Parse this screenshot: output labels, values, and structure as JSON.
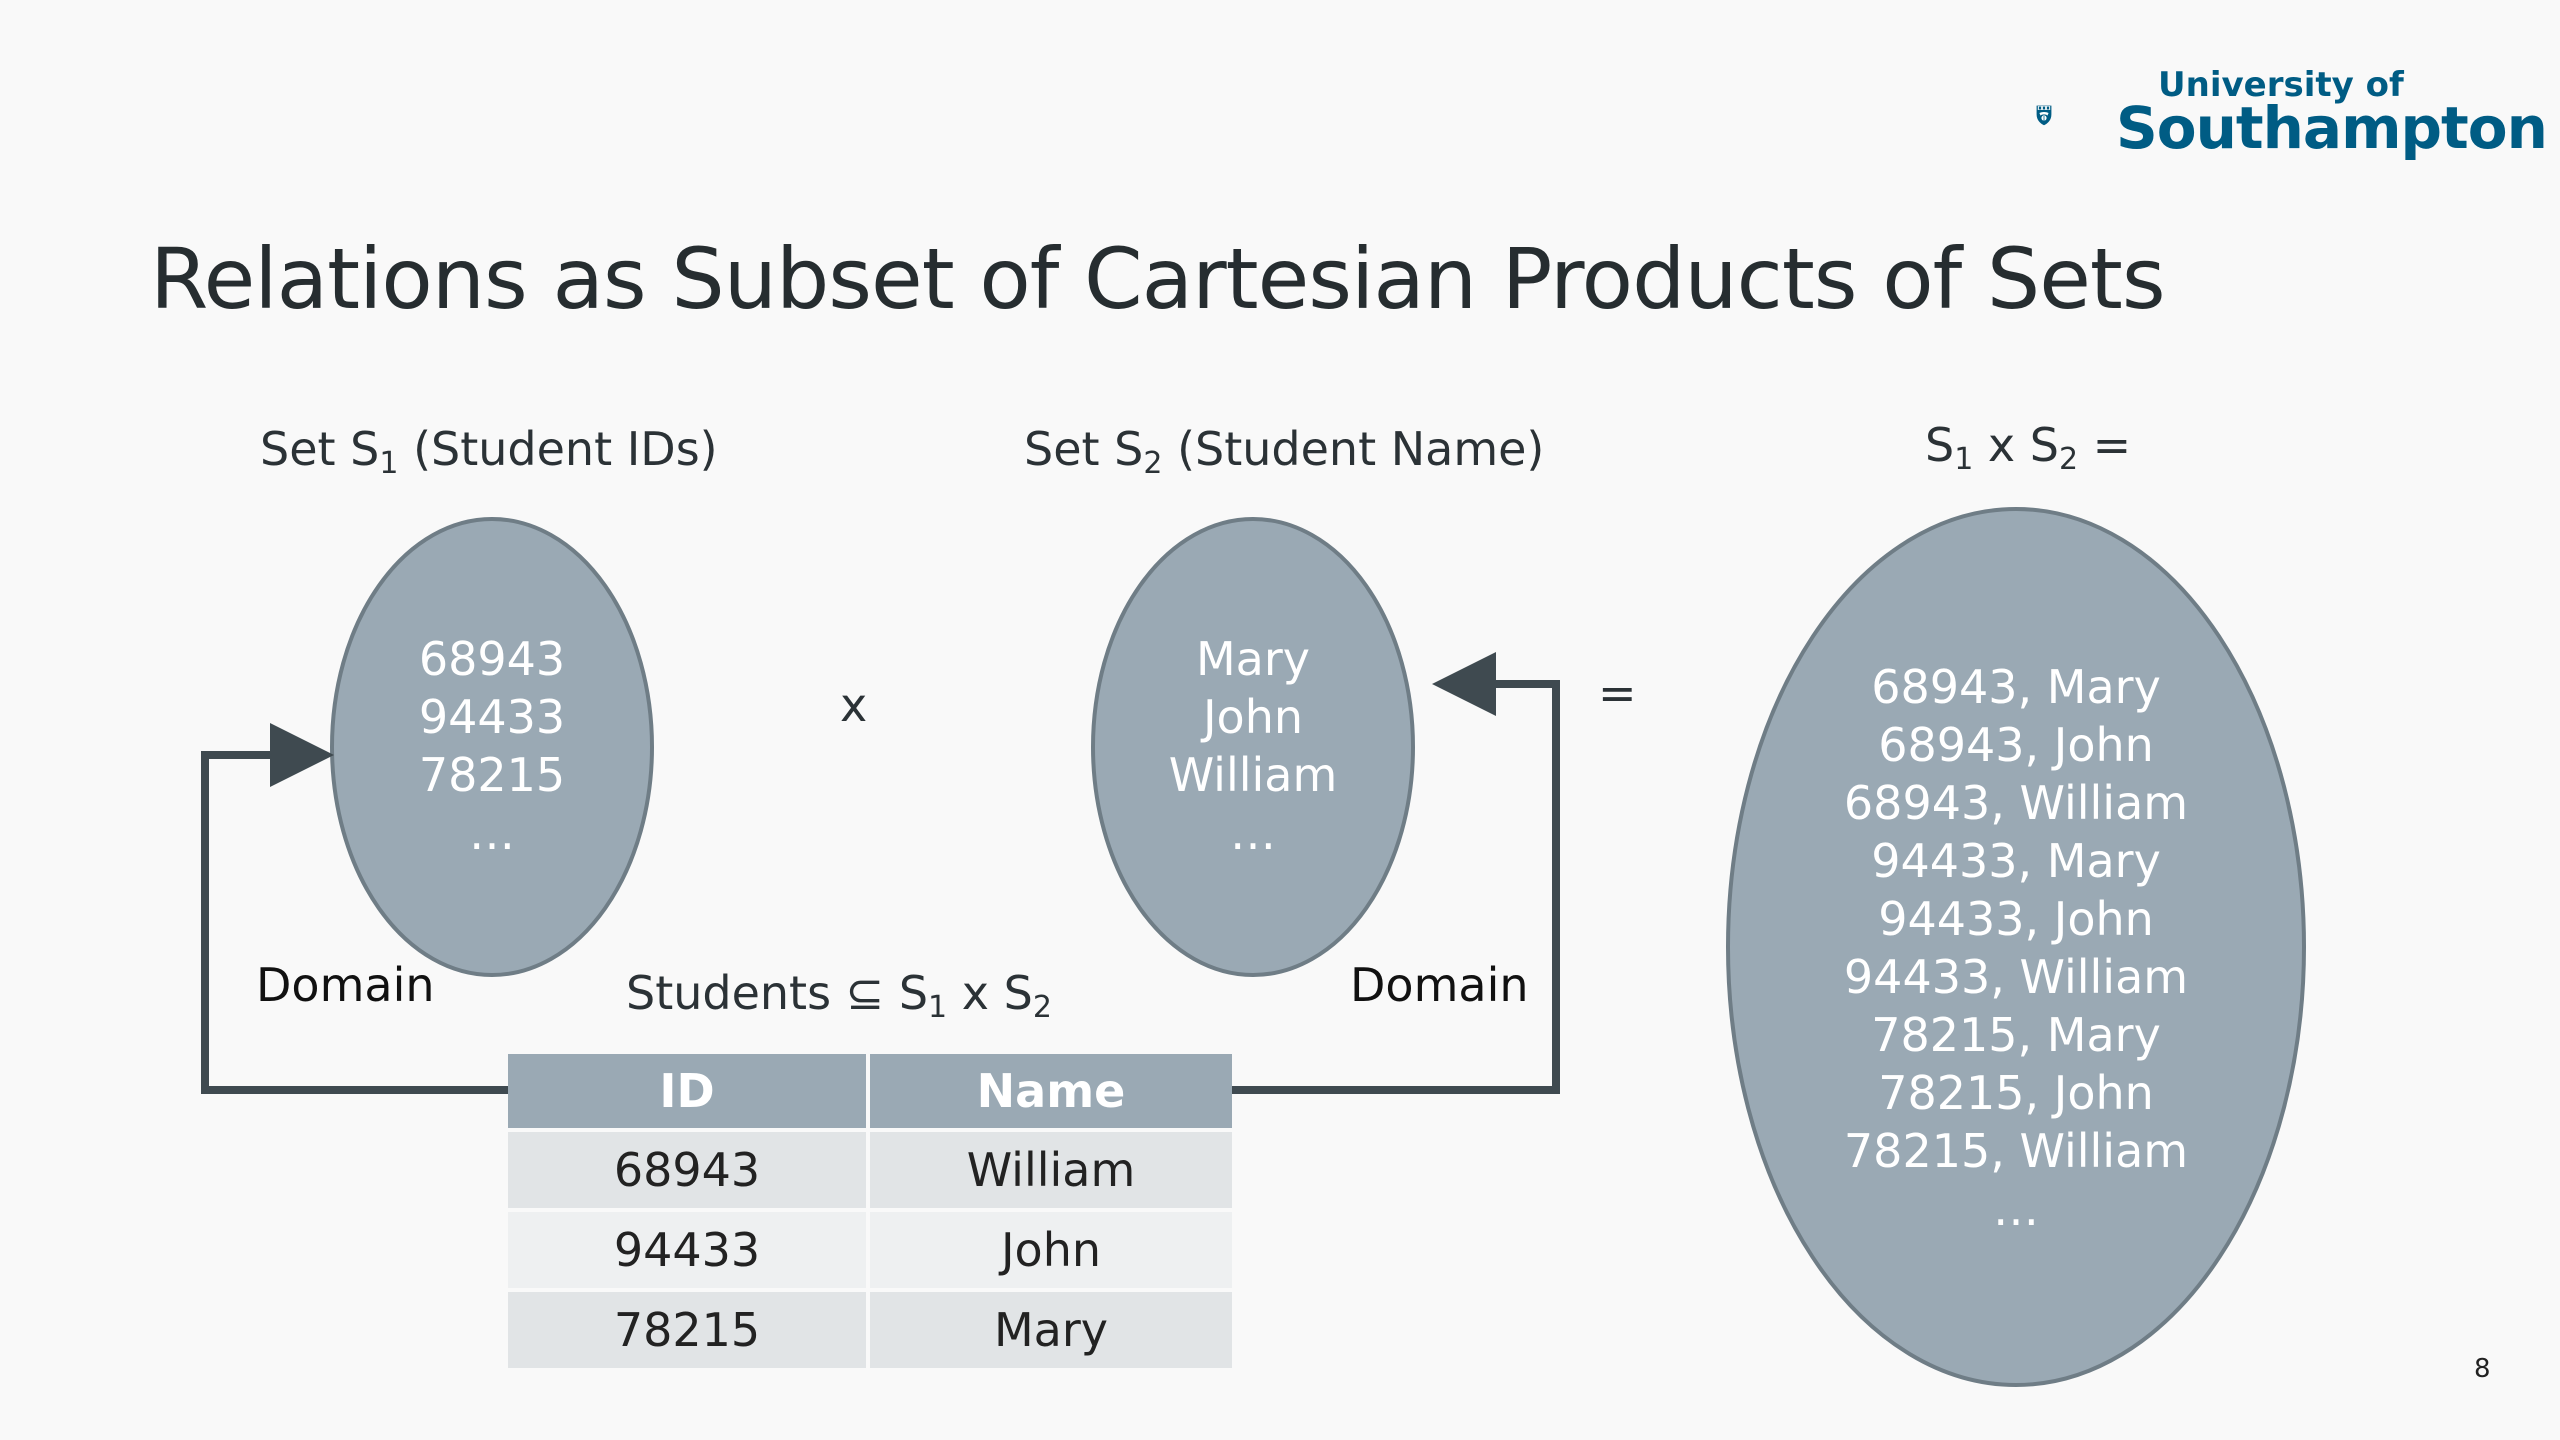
{
  "slide": {
    "title": "Relations as Subset of Cartesian Products of Sets",
    "page_number": "8"
  },
  "logo": {
    "line1": "University of",
    "line2": "Southampton"
  },
  "set1": {
    "label_prefix": "Set S",
    "label_sub": "1",
    "label_suffix": " (Student IDs)",
    "items": [
      "68943",
      "94433",
      "78215",
      "…"
    ]
  },
  "set2": {
    "label_prefix": "Set S",
    "label_sub": "2",
    "label_suffix": " (Student Name)",
    "items": [
      "Mary",
      "John",
      "William",
      "…"
    ]
  },
  "operators": {
    "times": "x",
    "equals": "="
  },
  "product": {
    "label_s1": "S",
    "label_sub1": "1",
    "label_x": " x S",
    "label_sub2": "2",
    "label_eq": " =",
    "items": [
      "68943, Mary",
      "68943, John",
      "68943, William",
      "94433, Mary",
      "94433, John",
      "94433, William",
      "78215, Mary",
      "78215, John",
      "78215, William",
      "…"
    ]
  },
  "domain_labels": {
    "left": "Domain",
    "right": "Domain"
  },
  "students": {
    "label_prefix": "Students ⊆ S",
    "label_sub1": "1",
    "label_x": " x S",
    "label_sub2": "2",
    "columns": [
      "ID",
      "Name"
    ],
    "rows": [
      [
        "68943",
        "William"
      ],
      [
        "94433",
        "John"
      ],
      [
        "78215",
        "Mary"
      ]
    ]
  },
  "colors": {
    "ellipse_fill": "#9aa9b4",
    "ellipse_stroke": "#6f7d86",
    "arrow": "#3f4a50",
    "logo": "#005c84"
  }
}
